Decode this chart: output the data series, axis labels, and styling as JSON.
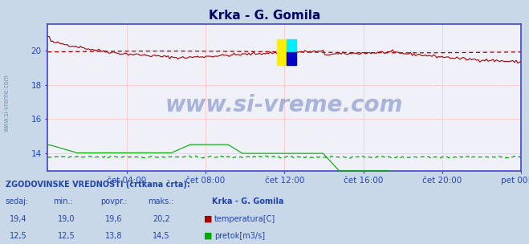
{
  "title": "Krka - G. Gomila",
  "fig_bg": "#c8d8e8",
  "plot_bg": "#f0f0f8",
  "grid_color_h": "#ffcccc",
  "grid_color_v": "#ffcccc",
  "border_color": "#4444cc",
  "watermark": "www.si-vreme.com",
  "watermark_color": "#2244aa",
  "x_labels": [
    "čet 04:00",
    "čet 08:00",
    "čet 12:00",
    "čet 16:00",
    "čet 20:00",
    "pet 00:00"
  ],
  "yticks": [
    14,
    16,
    18,
    20
  ],
  "ylim": [
    13.0,
    21.5
  ],
  "temp_color": "#aa0000",
  "flow_color": "#00aa00",
  "tick_color": "#2244cc",
  "title_color": "#000066",
  "text_color": "#2244aa",
  "stats_label": "ZGODOVINSKE VREDNOSTI (črtkana črta):",
  "col_headers": [
    "sedaj:",
    "min.:",
    "povpr.:",
    "maks.:"
  ],
  "temp_stats": [
    "19,4",
    "19,0",
    "19,6",
    "20,2"
  ],
  "flow_stats": [
    "12,5",
    "12,5",
    "13,8",
    "14,5"
  ],
  "legend_title": "Krka - G. Gomila",
  "temp_label": "temperatura[C]",
  "flow_label": "pretok[m3/s]",
  "n_points": 288
}
